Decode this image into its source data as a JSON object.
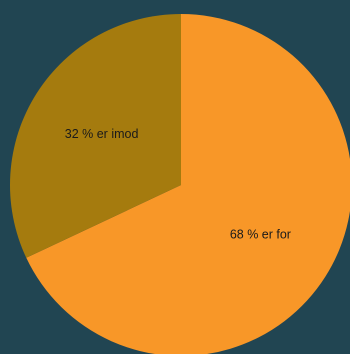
{
  "background_color": "#214552",
  "chart_data": {
    "type": "pie",
    "start_angle_deg": 0,
    "direction": "clockwise",
    "slices": [
      {
        "label": "68 % er for",
        "value": 68,
        "color": "#F89728"
      },
      {
        "label": "32 % er imod",
        "value": 32,
        "color": "#A57B0E"
      }
    ],
    "legend": "none",
    "title": ""
  }
}
